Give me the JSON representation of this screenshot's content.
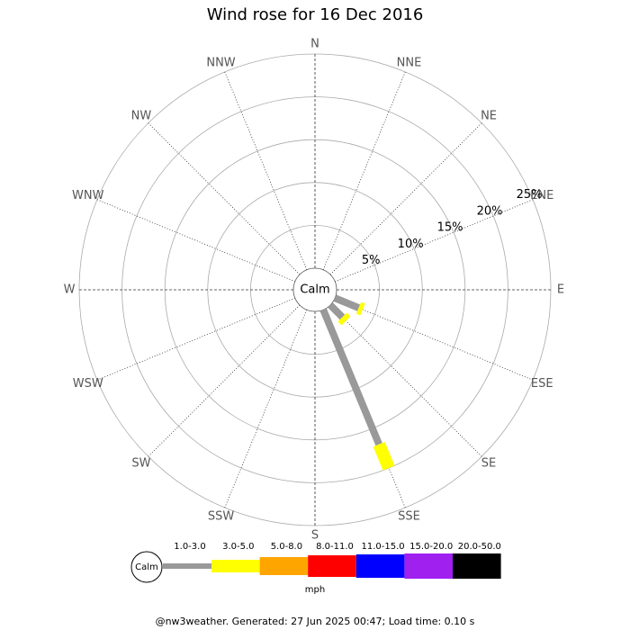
{
  "chart_data": {
    "type": "windrose",
    "title": "Wind rose for 16 Dec 2016",
    "directions": [
      "N",
      "NNE",
      "NE",
      "ENE",
      "E",
      "ESE",
      "SE",
      "SSE",
      "S",
      "SSW",
      "SW",
      "WSW",
      "W",
      "WNW",
      "NW",
      "NNW"
    ],
    "calm_label": "Calm",
    "rlim": [
      0,
      25
    ],
    "rticks": [
      {
        "value": 5,
        "label": "5%"
      },
      {
        "value": 10,
        "label": "10%"
      },
      {
        "value": 15,
        "label": "15%"
      },
      {
        "value": 20,
        "label": "20%"
      },
      {
        "value": 25,
        "label": "25%"
      }
    ],
    "series": [
      {
        "name": "1.0-3.0",
        "color": "#999999",
        "values": [
          0,
          0,
          0,
          0,
          0,
          3,
          2,
          17,
          0,
          0,
          0,
          0,
          0,
          0,
          0,
          0
        ]
      },
      {
        "name": "3.0-5.0",
        "color": "#ffff00",
        "values": [
          0,
          0,
          0,
          0,
          0,
          0.5,
          0.6,
          3,
          0,
          0,
          0,
          0,
          0,
          0,
          0,
          0
        ]
      },
      {
        "name": "5.0-8.0",
        "color": "#ffa500",
        "values": [
          0,
          0,
          0,
          0,
          0,
          0,
          0,
          0,
          0,
          0,
          0,
          0,
          0,
          0,
          0,
          0
        ]
      },
      {
        "name": "8.0-11.0",
        "color": "#ff0000",
        "values": [
          0,
          0,
          0,
          0,
          0,
          0,
          0,
          0,
          0,
          0,
          0,
          0,
          0,
          0,
          0,
          0
        ]
      },
      {
        "name": "11.0-15.0",
        "color": "#0000ff",
        "values": [
          0,
          0,
          0,
          0,
          0,
          0,
          0,
          0,
          0,
          0,
          0,
          0,
          0,
          0,
          0,
          0
        ]
      },
      {
        "name": "15.0-20.0",
        "color": "#a020f0",
        "values": [
          0,
          0,
          0,
          0,
          0,
          0,
          0,
          0,
          0,
          0,
          0,
          0,
          0,
          0,
          0,
          0
        ]
      },
      {
        "name": "20.0-50.0",
        "color": "#000000",
        "values": [
          0,
          0,
          0,
          0,
          0,
          0,
          0,
          0,
          0,
          0,
          0,
          0,
          0,
          0,
          0,
          0
        ]
      }
    ],
    "unit": "mph",
    "footer": "@nw3weather. Generated: 27 Jun 2025 00:47; Load time: 0.10 s"
  }
}
